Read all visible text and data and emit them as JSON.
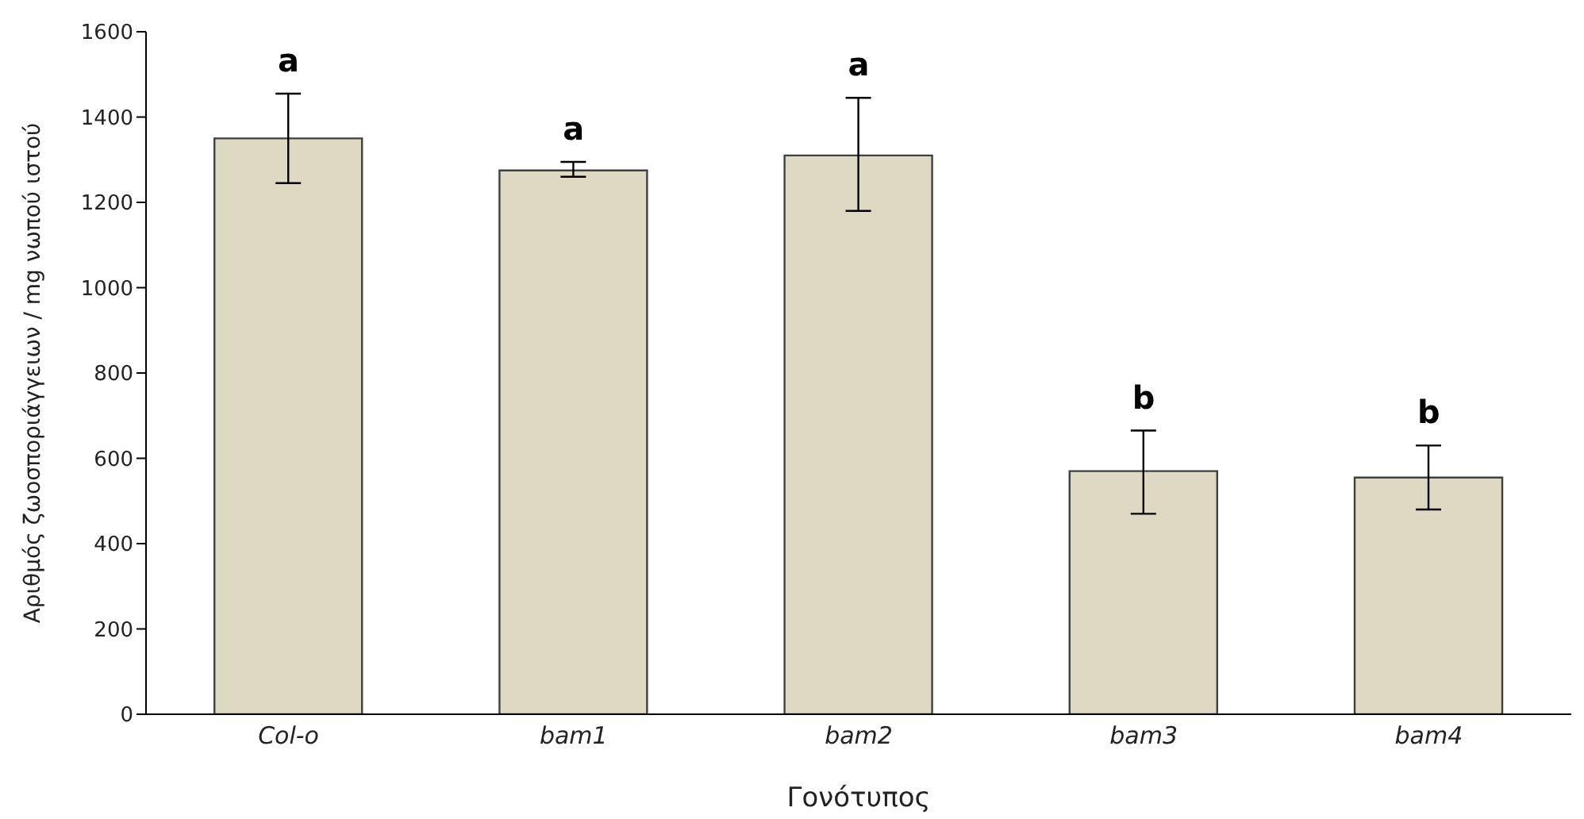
{
  "chart_data": {
    "type": "bar",
    "xlabel": "Γονότυπος",
    "ylabel": "Αριθμός ζωοσποριάγγειων / mg νωπού ιστού",
    "categories": [
      "Col-o",
      "bam1",
      "bam2",
      "bam3",
      "bam4"
    ],
    "values": [
      1350,
      1275,
      1310,
      570,
      555
    ],
    "errors": [
      [
        1245,
        1455
      ],
      [
        1260,
        1295
      ],
      [
        1180,
        1445
      ],
      [
        470,
        665
      ],
      [
        480,
        630
      ]
    ],
    "color": "#ddd9c3",
    "ylim": [
      0,
      1600
    ],
    "yticks": [
      0,
      200,
      400,
      600,
      800,
      1000,
      1200,
      1400,
      1600
    ],
    "grid": false,
    "legend": false,
    "annotations": [
      "a",
      "a",
      "a",
      "b",
      "b"
    ]
  }
}
